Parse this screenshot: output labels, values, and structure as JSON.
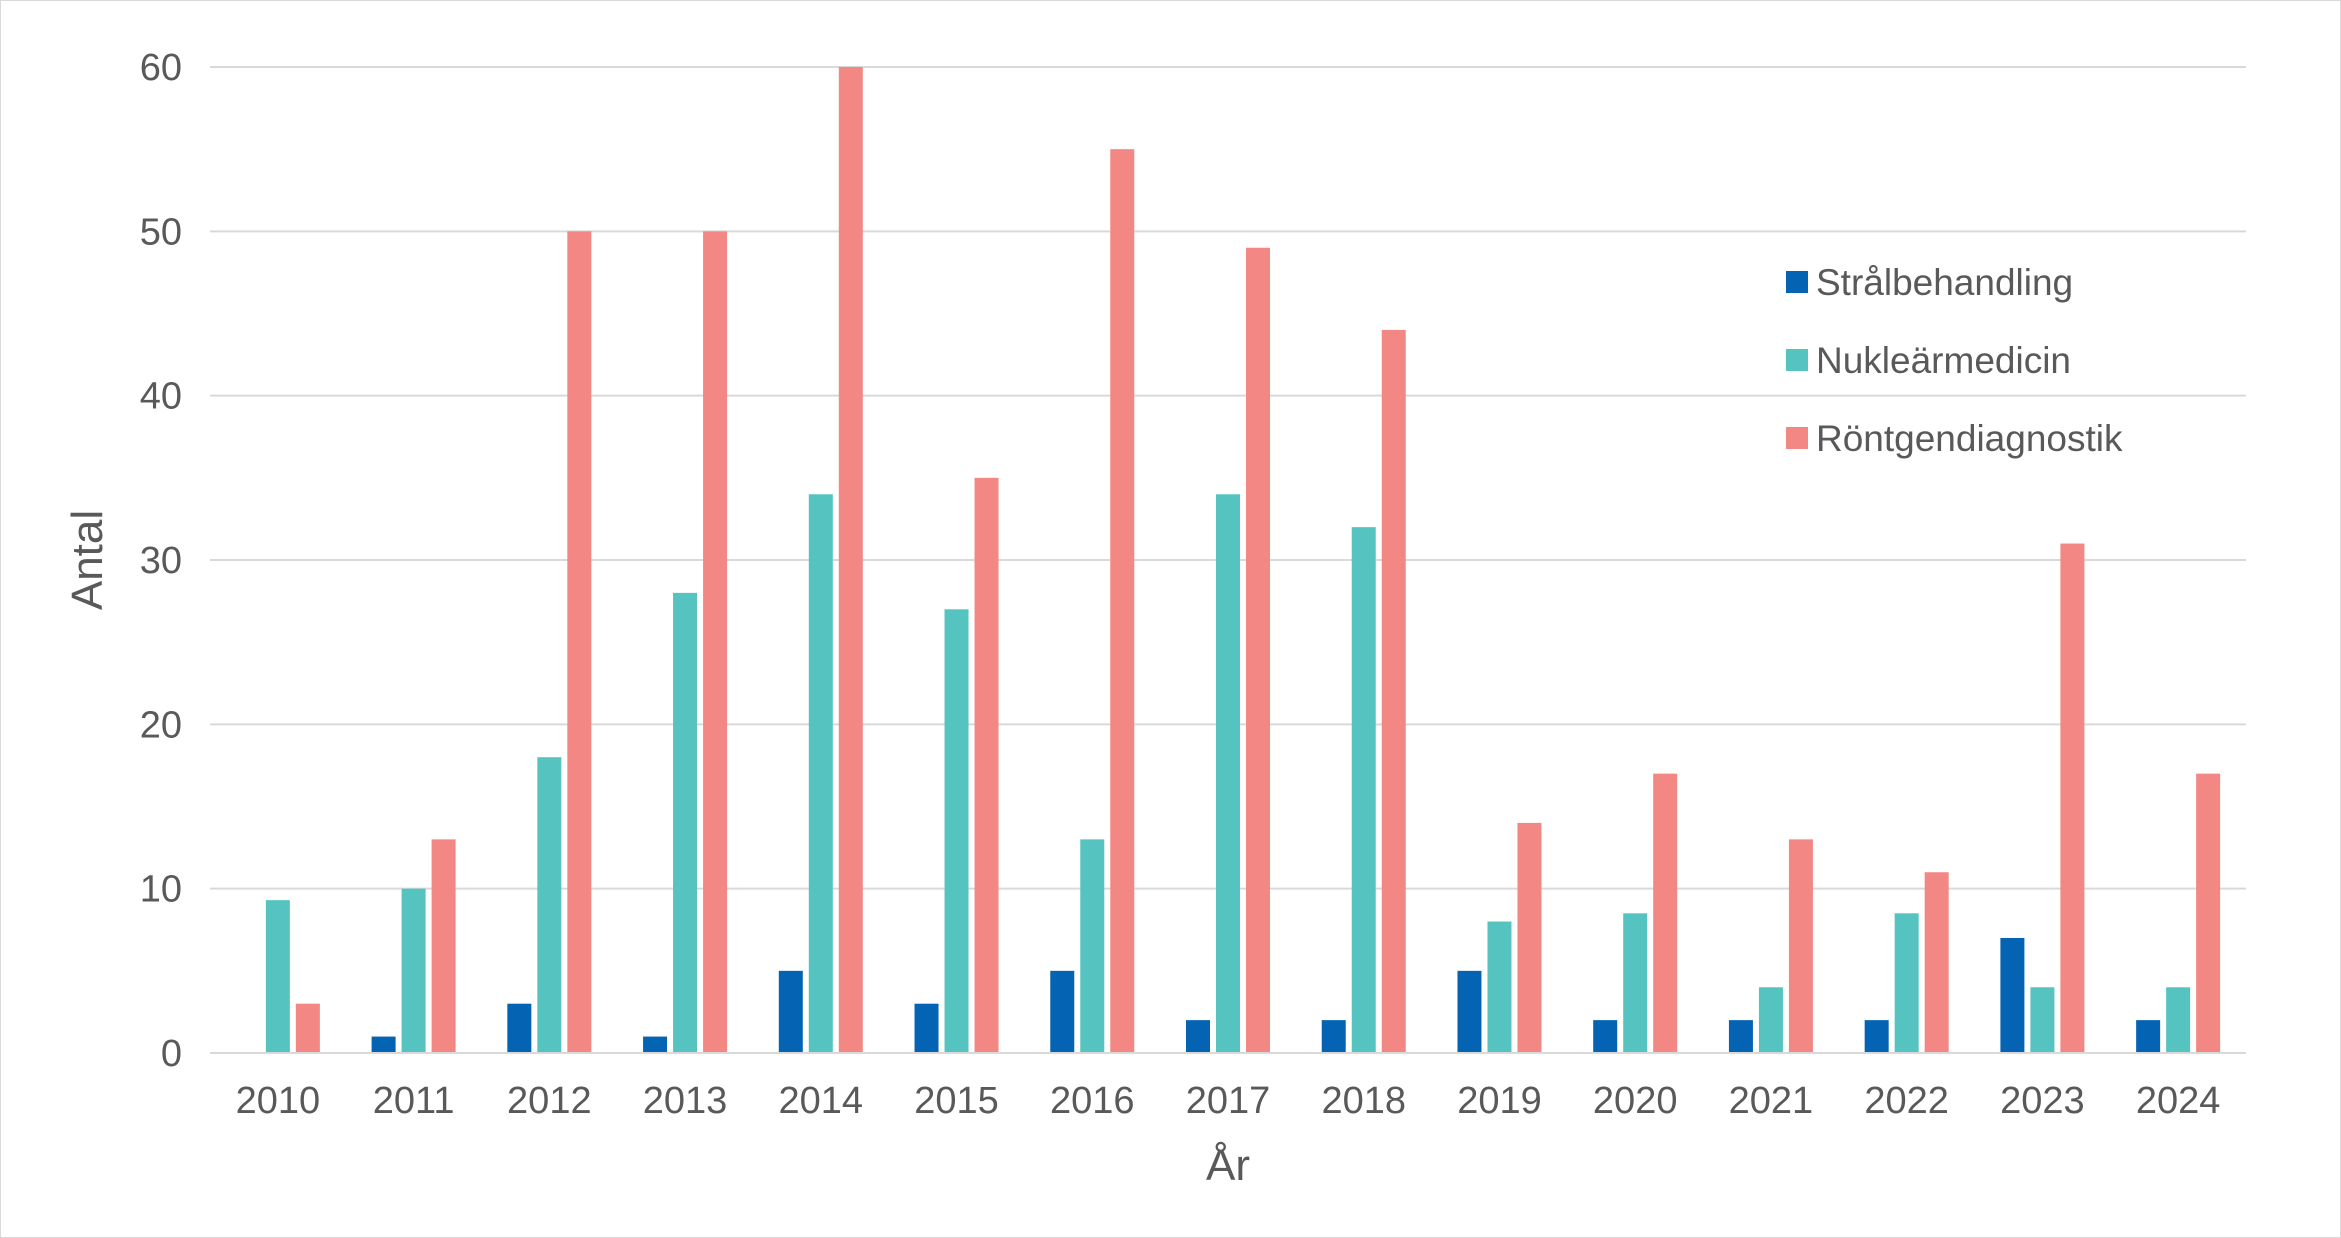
{
  "chart_data": {
    "type": "bar",
    "title": "",
    "xlabel": "År",
    "ylabel": "Antal",
    "ylim": [
      0,
      60
    ],
    "yticks": [
      "0",
      "10",
      "20",
      "30",
      "40",
      "50",
      "60"
    ],
    "grid": true,
    "legend_position": "top-right",
    "categories": [
      "2010",
      "2011",
      "2012",
      "2013",
      "2014",
      "2015",
      "2016",
      "2017",
      "2018",
      "2019",
      "2020",
      "2021",
      "2022",
      "2023",
      "2024"
    ],
    "series": [
      {
        "name": "Strålbehandling",
        "color": "#0563b4",
        "values": [
          0,
          1,
          3,
          1,
          5,
          3,
          5,
          2,
          2,
          5,
          2,
          2,
          2,
          7,
          2
        ]
      },
      {
        "name": "Nukleärmedicin",
        "color": "#55c4c0",
        "values": [
          9.3,
          10,
          18,
          28,
          34,
          27,
          13,
          34,
          32,
          8,
          8.5,
          4,
          8.5,
          4,
          4
        ]
      },
      {
        "name": "Röntgendiagnostik",
        "color": "#f28783",
        "values": [
          3,
          13,
          50,
          50,
          60,
          35,
          55,
          49,
          44,
          14,
          17,
          13,
          11,
          31,
          17
        ]
      }
    ]
  }
}
